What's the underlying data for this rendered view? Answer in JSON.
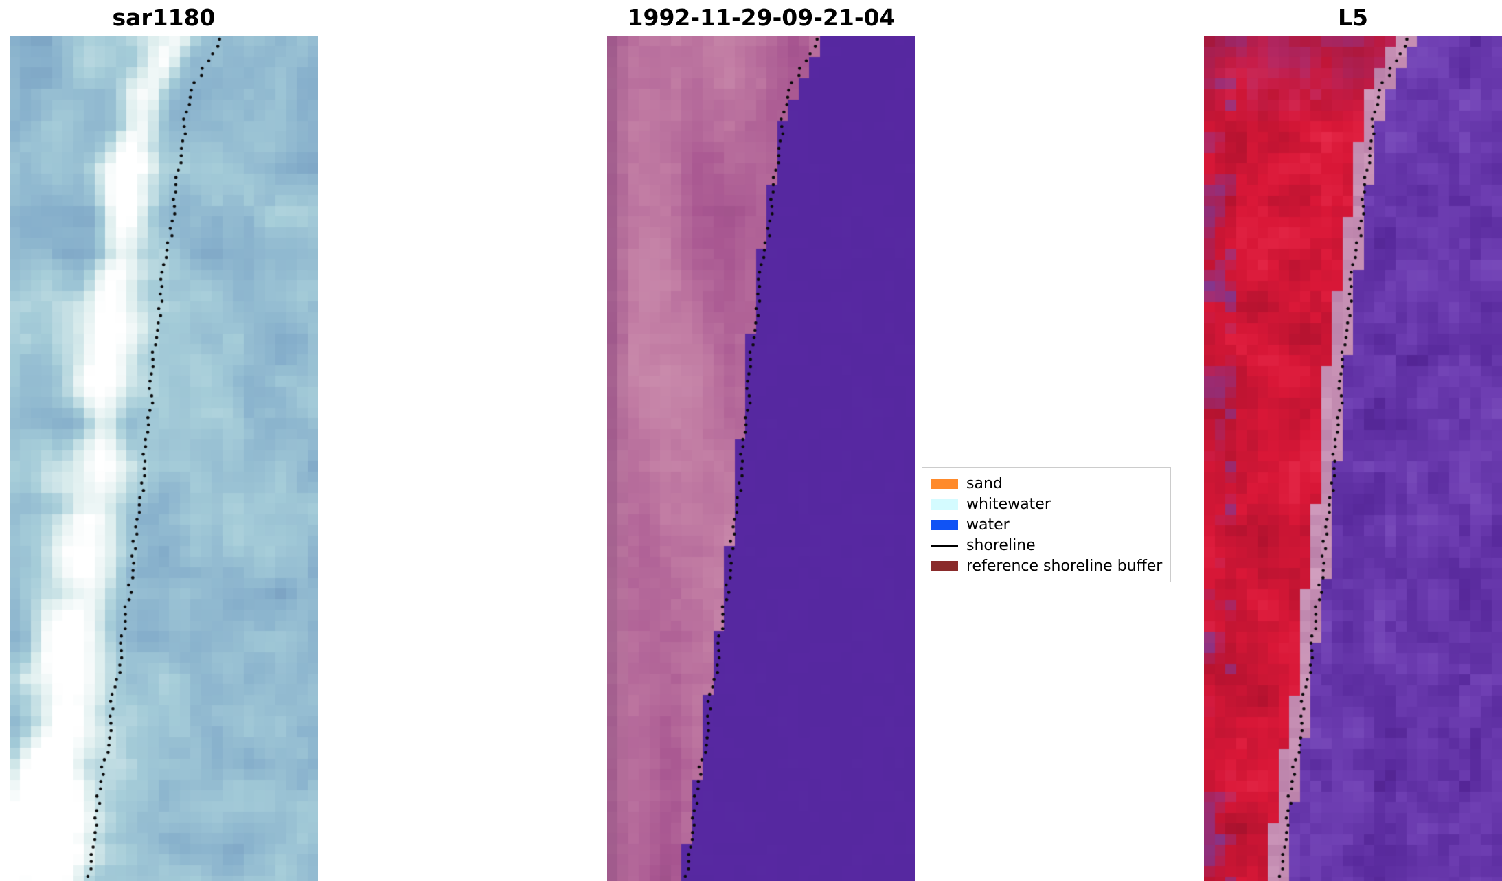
{
  "figure": {
    "background": "#ffffff"
  },
  "chart_data": {
    "type": "heatmap",
    "subtype": "satellite-shoreline-detection-panels",
    "panels": [
      {
        "id": "sar",
        "title": "sar1180",
        "palette": [
          "#6c92b8",
          "#87b0cc",
          "#a6cdd9",
          "#ddeeee",
          "#ffffff"
        ]
      },
      {
        "id": "classified",
        "title": "1992-11-29-09-21-04",
        "water_color": "#5628a0",
        "buffer_palette": [
          "#8d4a7d",
          "#a85691",
          "#c27da4",
          "#d29bb5"
        ]
      },
      {
        "id": "l5",
        "title": "L5",
        "red_palette": [
          "#7e1029",
          "#b51330",
          "#da1838",
          "#ea3050"
        ],
        "purple_palette": [
          "#46197f",
          "#5a2b9e",
          "#6f3fb3",
          "#8257c2"
        ],
        "edge_palette": [
          "#d3a0c0",
          "#b97fa8"
        ]
      }
    ],
    "legend": {
      "items": [
        {
          "label": "sand",
          "color": "#ff8a2b",
          "swatch": "patch"
        },
        {
          "label": "whitewater",
          "color": "#d4fbff",
          "swatch": "patch"
        },
        {
          "label": "water",
          "color": "#1053f5",
          "swatch": "patch"
        },
        {
          "label": "shoreline",
          "color": "#000000",
          "swatch": "line"
        },
        {
          "label": "reference shoreline buffer",
          "color": "#8a2b2b",
          "swatch": "patch"
        }
      ]
    },
    "shoreline_path": [
      [
        0.0,
        0.69
      ],
      [
        0.03,
        0.64
      ],
      [
        0.06,
        0.6
      ],
      [
        0.1,
        0.57
      ],
      [
        0.15,
        0.552
      ],
      [
        0.2,
        0.532
      ],
      [
        0.25,
        0.512
      ],
      [
        0.3,
        0.492
      ],
      [
        0.35,
        0.476
      ],
      [
        0.4,
        0.462
      ],
      [
        0.45,
        0.45
      ],
      [
        0.5,
        0.438
      ],
      [
        0.55,
        0.424
      ],
      [
        0.6,
        0.408
      ],
      [
        0.65,
        0.39
      ],
      [
        0.7,
        0.372
      ],
      [
        0.75,
        0.352
      ],
      [
        0.8,
        0.332
      ],
      [
        0.85,
        0.31
      ],
      [
        0.9,
        0.29
      ],
      [
        0.95,
        0.274
      ],
      [
        1.0,
        0.26
      ]
    ]
  }
}
